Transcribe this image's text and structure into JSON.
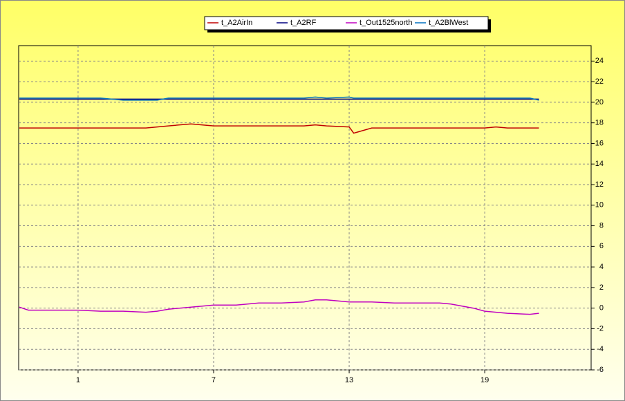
{
  "chart_data": {
    "type": "line",
    "x": [
      -1.6,
      -1.2,
      0,
      1,
      2,
      3,
      4,
      4.5,
      5,
      6,
      7,
      8,
      9,
      10,
      11,
      11.5,
      12,
      13,
      13.2,
      14,
      15,
      16,
      16.5,
      17,
      17.5,
      18,
      18.5,
      19,
      19.5,
      20,
      21,
      21.4
    ],
    "series": [
      {
        "name": "t_A2AirIn",
        "color": "#c00000",
        "values": [
          17.5,
          17.5,
          17.5,
          17.5,
          17.5,
          17.5,
          17.5,
          17.6,
          17.7,
          17.9,
          17.7,
          17.7,
          17.7,
          17.7,
          17.7,
          17.8,
          17.7,
          17.6,
          17.0,
          17.5,
          17.5,
          17.5,
          17.5,
          17.5,
          17.5,
          17.5,
          17.5,
          17.5,
          17.6,
          17.5,
          17.5,
          17.5
        ]
      },
      {
        "name": "t_A2RF",
        "color": "#000080",
        "values": [
          20.3,
          20.3,
          20.3,
          20.3,
          20.3,
          20.3,
          20.3,
          20.3,
          20.3,
          20.3,
          20.3,
          20.3,
          20.3,
          20.3,
          20.3,
          20.3,
          20.3,
          20.3,
          20.3,
          20.3,
          20.3,
          20.3,
          20.3,
          20.3,
          20.3,
          20.3,
          20.3,
          20.3,
          20.3,
          20.3,
          20.3,
          20.3
        ]
      },
      {
        "name": "t_Out1525north",
        "color": "#c000c0",
        "values": [
          0.1,
          -0.2,
          -0.2,
          -0.2,
          -0.3,
          -0.3,
          -0.4,
          -0.3,
          -0.1,
          0.1,
          0.3,
          0.3,
          0.5,
          0.5,
          0.6,
          0.8,
          0.8,
          0.6,
          0.6,
          0.6,
          0.5,
          0.5,
          0.5,
          0.5,
          0.4,
          0.2,
          0,
          -0.3,
          -0.4,
          -0.5,
          -0.6,
          -0.5
        ]
      },
      {
        "name": "t_A2BlWest",
        "color": "#0070c0",
        "values": [
          20.4,
          20.4,
          20.4,
          20.4,
          20.4,
          20.2,
          20.2,
          20.2,
          20.4,
          20.4,
          20.4,
          20.4,
          20.4,
          20.4,
          20.4,
          20.5,
          20.4,
          20.5,
          20.4,
          20.4,
          20.4,
          20.4,
          20.4,
          20.4,
          20.4,
          20.4,
          20.4,
          20.4,
          20.4,
          20.4,
          20.4,
          20.2
        ]
      }
    ],
    "xlim": [
      -1.63,
      23.71
    ],
    "xticks": [
      1,
      7,
      13,
      19
    ],
    "ylim": [
      -6,
      25.5
    ],
    "yticks": [
      -6,
      -4,
      -2,
      0,
      2,
      4,
      6,
      8,
      10,
      12,
      14,
      16,
      18,
      20,
      22,
      24
    ],
    "grid": true
  }
}
